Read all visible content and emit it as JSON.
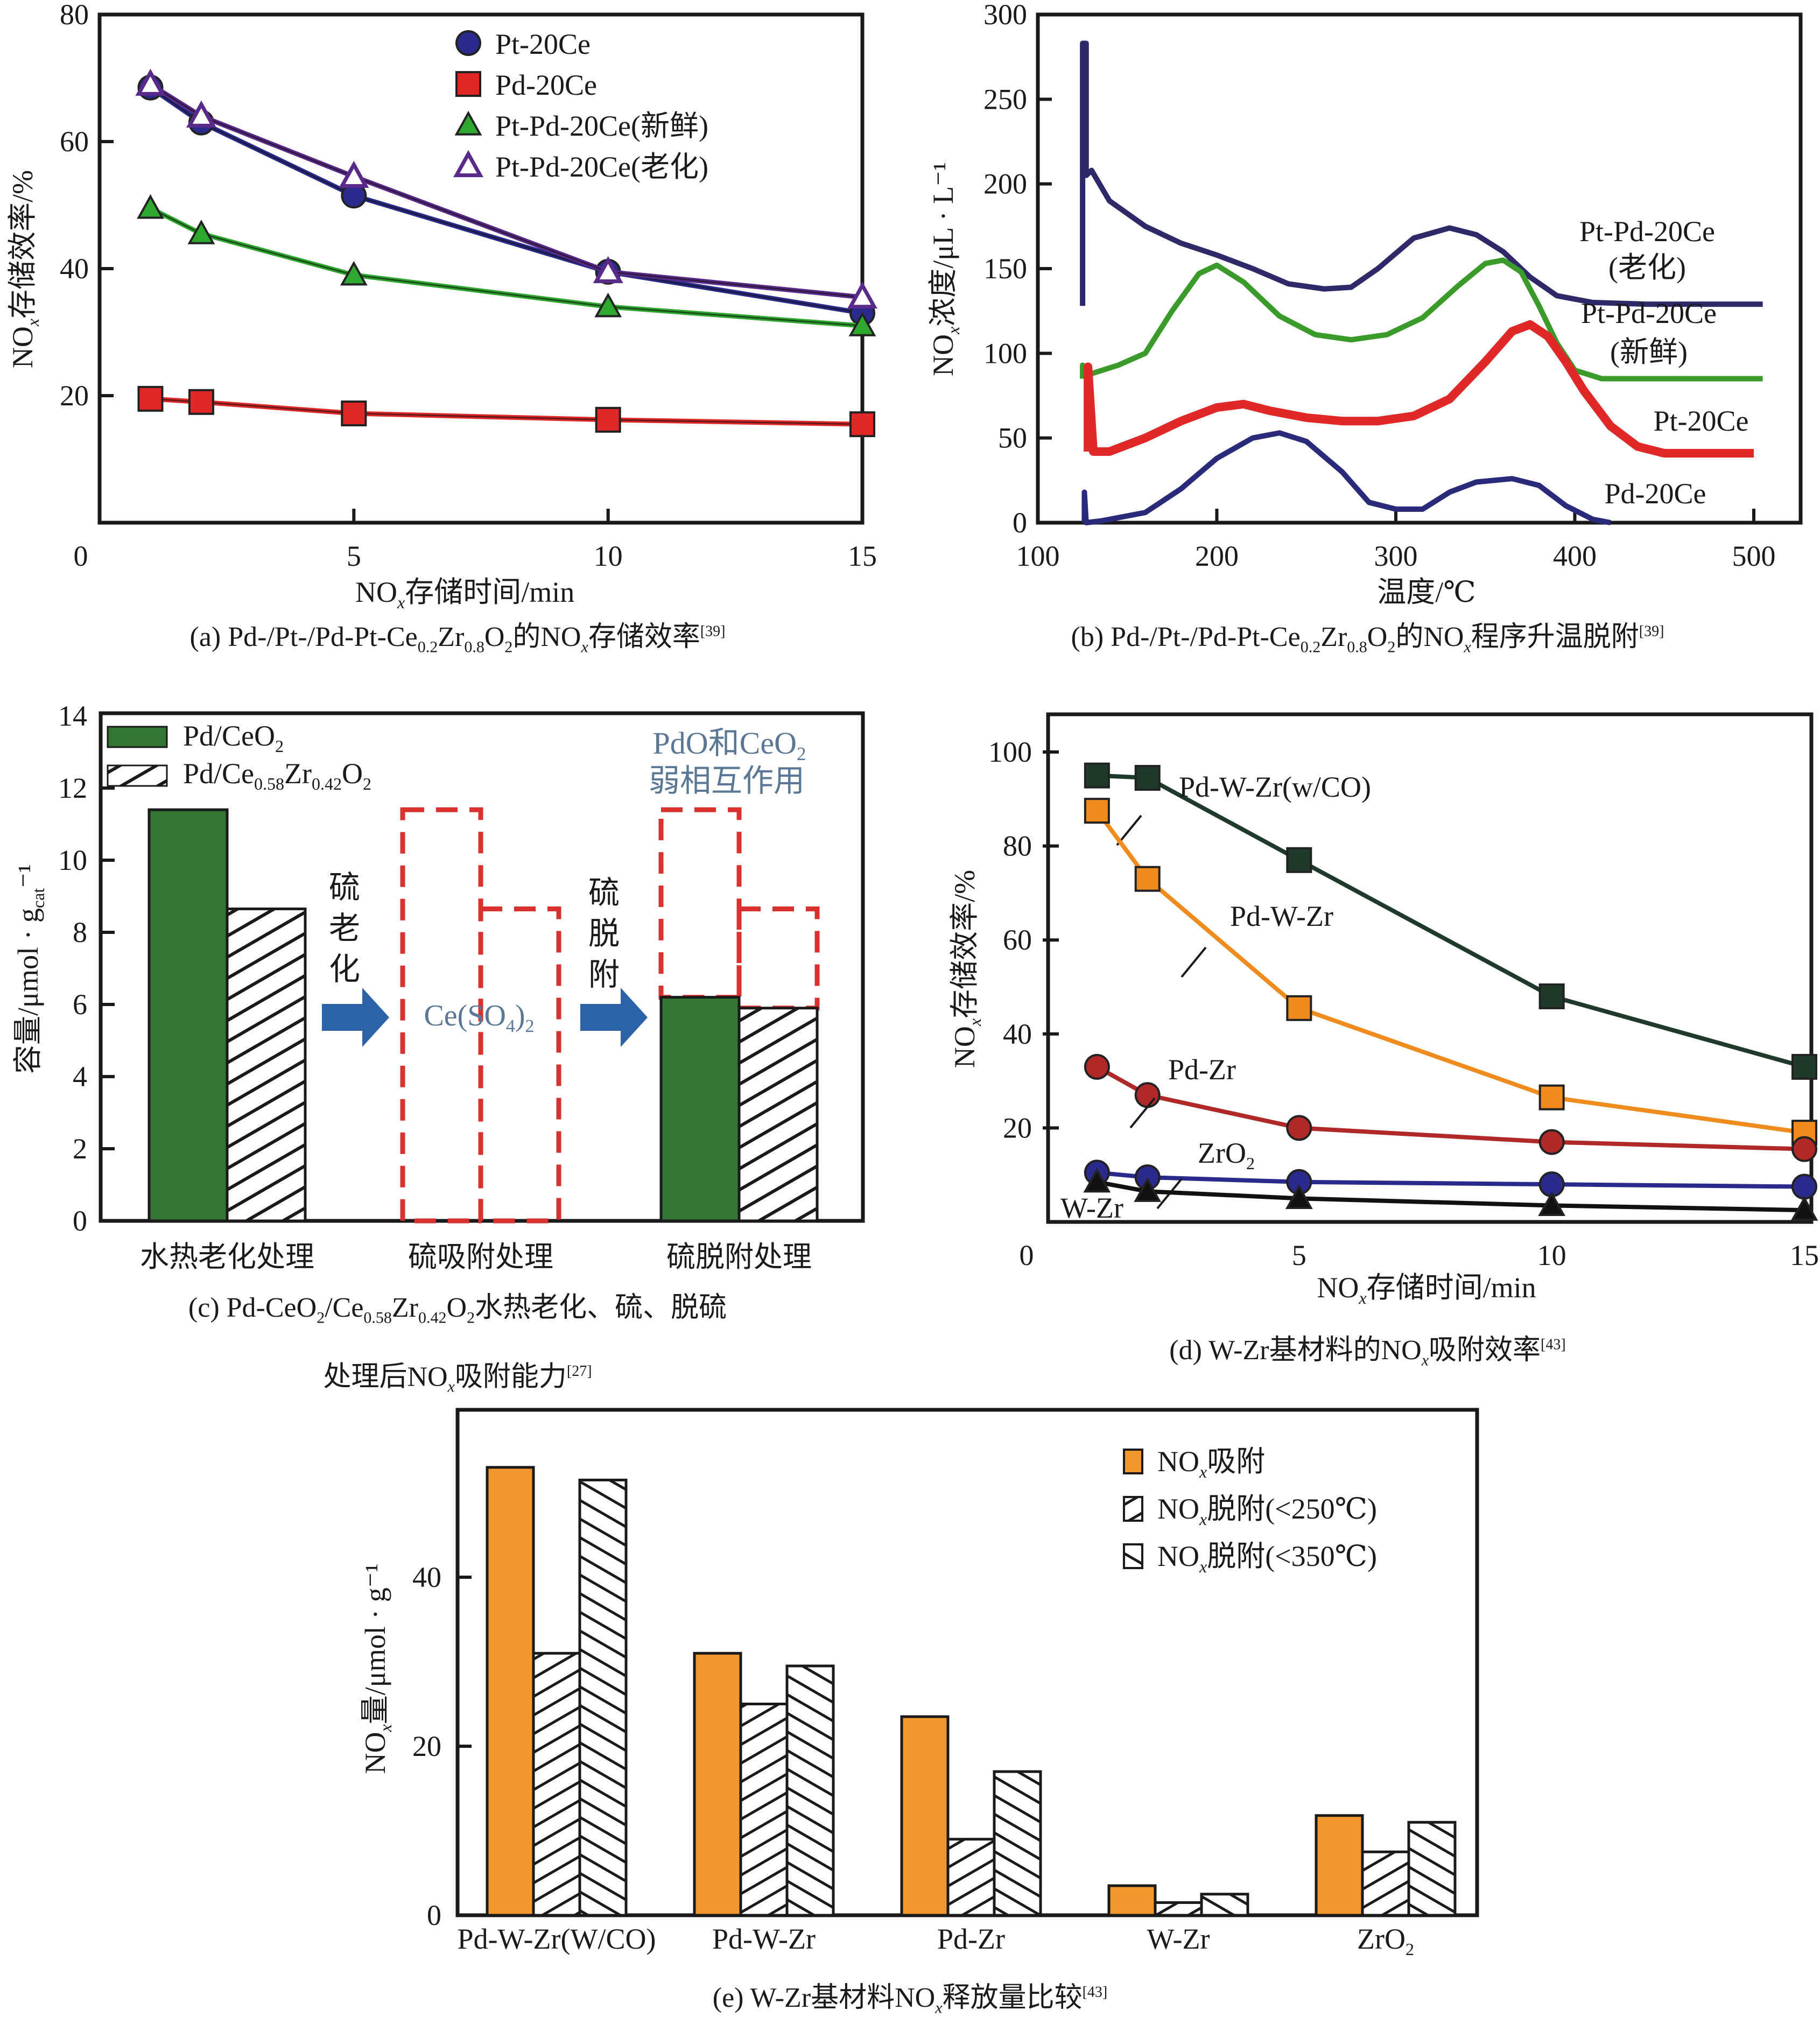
{
  "figure": {
    "captions": {
      "a": {
        "prefix": "(a) Pd-/Pt-/Pd-Pt-Ce",
        "s1": "0.2",
        "mid1": "Zr",
        "s2": "0.8",
        "mid2": "O",
        "s3": "2",
        "mid3": "的NO",
        "s4": "x",
        "tail": "存储效率",
        "ref": "[39]"
      },
      "b": {
        "prefix": "(b) Pd-/Pt-/Pd-Pt-Ce",
        "s1": "0.2",
        "mid1": "Zr",
        "s2": "0.8",
        "mid2": "O",
        "s3": "2",
        "mid3": "的NO",
        "s4": "x",
        "tail": "程序升温脱附",
        "ref": "[39]"
      },
      "c": {
        "line1_prefix": "(c) Pd-CeO",
        "s1": "2",
        "mid1": "/Ce",
        "s2": "0.58",
        "mid2": "Zr",
        "s3": "0.42",
        "mid3": "O",
        "s4": "2",
        "line1_tail": "水热老化、硫、脱硫",
        "line2_prefix": "处理后NO",
        "s5": "x",
        "line2_tail": "吸附能力",
        "ref": "[27]"
      },
      "d": {
        "prefix": "(d) W-Zr基材料的NO",
        "s1": "x",
        "tail": "吸附效率",
        "ref": "[43]"
      },
      "e": {
        "prefix": "(e) W-Zr基材料NO",
        "s1": "x",
        "tail": "释放量比较",
        "ref": "[43]"
      }
    }
  },
  "chart_data": [
    {
      "id": "a",
      "type": "line",
      "title": "",
      "xlabel": "NOx存储时间/min",
      "ylabel": "NOx存储效率/%",
      "xlim": [
        0,
        15
      ],
      "ylim": [
        0,
        80
      ],
      "xticks": [
        0,
        5,
        10,
        15
      ],
      "yticks": [
        20,
        40,
        60,
        80
      ],
      "grid": false,
      "legend_position": "top-center",
      "x": [
        1,
        2,
        5,
        10,
        15
      ],
      "series": [
        {
          "name": "Pt-20Ce",
          "marker": "circle",
          "color": "#2a2a8c",
          "values": [
            68.5,
            63,
            51.5,
            39.5,
            33
          ]
        },
        {
          "name": "Pd-20Ce",
          "marker": "square",
          "color": "#e02828",
          "values": [
            19.5,
            19,
            17.2,
            16.2,
            15.5
          ]
        },
        {
          "name": "Pt-Pd-20Ce(新鲜)",
          "marker": "triangle",
          "color": "#2fa82f",
          "values": [
            49.5,
            45.5,
            39,
            34,
            31
          ]
        },
        {
          "name": "Pt-Pd-20Ce(老化)",
          "marker": "triangle-open",
          "color": "#5a2a8a",
          "values": [
            69,
            64,
            54.5,
            39.5,
            35.5
          ]
        }
      ]
    },
    {
      "id": "b",
      "type": "line",
      "title": "",
      "xlabel": "温度/℃",
      "ylabel": "NOx浓度/μL·L⁻¹",
      "xlim": [
        100,
        500
      ],
      "ylim": [
        0,
        300
      ],
      "xticks": [
        100,
        200,
        300,
        400,
        500
      ],
      "yticks": [
        0,
        50,
        100,
        150,
        200,
        250,
        300
      ],
      "grid": false,
      "series": [
        {
          "name": "Pt-Pd-20Ce(老化)",
          "label_lines": [
            "Pt-Pd-20Ce",
            "(老化)"
          ],
          "color": "#2e2a6a",
          "x": [
            125,
            125,
            127,
            127,
            130,
            140,
            160,
            180,
            200,
            220,
            240,
            260,
            275,
            290,
            310,
            330,
            345,
            360,
            375,
            390,
            410,
            440,
            470,
            505
          ],
          "y": [
            128,
            283,
            283,
            205,
            208,
            190,
            175,
            165,
            158,
            150,
            141,
            138,
            139,
            150,
            168,
            174,
            170,
            160,
            145,
            134,
            130,
            129,
            129,
            129
          ]
        },
        {
          "name": "Pt-Pd-20Ce(新鲜)",
          "label_lines": [
            "Pt-Pd-20Ce",
            "(新鲜)"
          ],
          "color": "#3a9a2a",
          "x": [
            125,
            125,
            130,
            145,
            160,
            175,
            190,
            200,
            215,
            235,
            255,
            275,
            295,
            315,
            335,
            350,
            360,
            370,
            380,
            390,
            400,
            415,
            440,
            470,
            505
          ],
          "y": [
            85,
            93,
            88,
            93,
            100,
            125,
            147,
            152,
            142,
            122,
            111,
            108,
            111,
            121,
            140,
            153,
            155,
            148,
            128,
            106,
            90,
            85,
            85,
            85,
            85
          ]
        },
        {
          "name": "Pt-20Ce",
          "label_lines": [
            "Pt-20Ce"
          ],
          "color": "#e02828",
          "x": [
            128,
            128,
            131,
            140,
            160,
            180,
            200,
            215,
            230,
            250,
            270,
            290,
            310,
            330,
            350,
            365,
            375,
            385,
            395,
            405,
            420,
            435,
            450,
            475,
            500
          ],
          "y": [
            42,
            92,
            42,
            42,
            50,
            60,
            68,
            70,
            66,
            62,
            60,
            60,
            63,
            73,
            95,
            113,
            117,
            110,
            95,
            78,
            57,
            45,
            41,
            41,
            41
          ]
        },
        {
          "name": "Pd-20Ce",
          "label_lines": [
            "Pd-20Ce"
          ],
          "color": "#2a2a7a",
          "x": [
            126,
            126,
            127,
            135,
            160,
            180,
            200,
            220,
            235,
            250,
            270,
            285,
            300,
            315,
            330,
            345,
            365,
            380,
            395,
            410,
            420
          ],
          "y": [
            0,
            18,
            0,
            1,
            6,
            20,
            38,
            50,
            53,
            48,
            30,
            12,
            8,
            8,
            18,
            24,
            26,
            22,
            10,
            2,
            0
          ]
        }
      ]
    },
    {
      "id": "c",
      "type": "bar",
      "title": "",
      "xlabel": "",
      "ylabel": "容量/μmol·g_cat⁻¹",
      "ylim": [
        0,
        14
      ],
      "yticks": [
        0,
        2,
        4,
        6,
        8,
        10,
        12,
        14
      ],
      "grid": false,
      "legend_position": "top-left",
      "categories": [
        "水热老化处理",
        "硫吸附处理",
        "硫脱附处理"
      ],
      "series": [
        {
          "name": "Pd/CeO2",
          "label_parts": [
            "Pd/CeO",
            "2"
          ],
          "fill": "#327535",
          "values": [
            11.4,
            0,
            6.2
          ]
        },
        {
          "name": "Pd/Ce0.58Zr0.42O2",
          "label_parts": [
            "Pd/Ce",
            "0.58",
            "Zr",
            "0.42",
            "O",
            "2"
          ],
          "fill": "hatch",
          "values": [
            8.65,
            0,
            5.9
          ]
        }
      ],
      "reference_outlines": {
        "color": "#d93030",
        "style": "dashed",
        "values": [
          11.4,
          8.65
        ]
      },
      "annotations": {
        "arrow1_label": [
          "硫",
          "老",
          "化"
        ],
        "arrow2_label": [
          "硫",
          "脱",
          "附"
        ],
        "center_note": {
          "main": "Ce(SO",
          "sub1": "4",
          "close": ")",
          "sub2": "2"
        },
        "right_note_line1": {
          "main": "PdO和CeO",
          "sub": "2"
        },
        "right_note_line2": "弱相互作用",
        "note_color": "#5a7896",
        "arrow_color": "#2c62a8"
      }
    },
    {
      "id": "d",
      "type": "line",
      "title": "",
      "xlabel": "NOx存储时间/min",
      "ylabel": "NOx存储效率/%",
      "xlim": [
        0,
        15
      ],
      "ylim": [
        0,
        108
      ],
      "xticks": [
        0,
        5,
        10,
        15
      ],
      "yticks": [
        20,
        40,
        60,
        80,
        100
      ],
      "grid": false,
      "x": [
        1,
        2,
        5,
        10,
        15
      ],
      "series": [
        {
          "name": "Pd-W-Zr(w/CO)",
          "marker": "square",
          "color": "#1f3a2a",
          "values": [
            95,
            94.5,
            77,
            48,
            33
          ]
        },
        {
          "name": "Pd-W-Zr",
          "marker": "square",
          "color": "#f08c1e",
          "values": [
            87.5,
            73,
            45.5,
            26.5,
            19
          ]
        },
        {
          "name": "Pd-Zr",
          "marker": "circle",
          "color": "#b02828",
          "values": [
            33,
            27,
            20,
            17,
            15.5
          ]
        },
        {
          "name": "ZrO2",
          "label_parts": [
            "ZrO",
            "2"
          ],
          "marker": "circle",
          "color": "#2a2a8c",
          "values": [
            10.5,
            9.5,
            8.5,
            8,
            7.5
          ]
        },
        {
          "name": "W-Zr",
          "marker": "triangle",
          "color": "#111111",
          "values": [
            8.5,
            6.5,
            5,
            3.5,
            2.5
          ]
        }
      ]
    },
    {
      "id": "e",
      "type": "bar",
      "title": "",
      "xlabel": "",
      "ylabel": "NOx量/μmol·g⁻¹",
      "ylim": [
        0,
        58
      ],
      "yticks": [
        0,
        20,
        40
      ],
      "grid": false,
      "legend_position": "top-right",
      "categories": [
        "Pd-W-Zr(W/CO)",
        "Pd-W-Zr",
        "Pd-Zr",
        "W-Zr",
        "ZrO2"
      ],
      "category_parts": [
        [
          "Pd-W-Zr(W/CO)"
        ],
        [
          "Pd-W-Zr"
        ],
        [
          "Pd-Zr"
        ],
        [
          "W-Zr"
        ],
        [
          "ZrO",
          "2"
        ]
      ],
      "series": [
        {
          "name": "NOx吸附",
          "label_parts": [
            "NO",
            "x",
            "吸附"
          ],
          "fill": "#f2962e",
          "values": [
            53,
            31,
            23.5,
            3.5,
            11.8
          ]
        },
        {
          "name": "NOx脱附(<250℃)",
          "label_parts": [
            "NO",
            "x",
            "脱附(<250℃)"
          ],
          "fill": "hatch-up",
          "values": [
            31,
            25,
            9,
            1.5,
            7.5
          ]
        },
        {
          "name": "NOx脱附(<350℃)",
          "label_parts": [
            "NO",
            "x",
            "脱附(<350℃)"
          ],
          "fill": "hatch-down",
          "values": [
            51.5,
            29.5,
            17,
            2.5,
            11
          ]
        }
      ]
    }
  ]
}
